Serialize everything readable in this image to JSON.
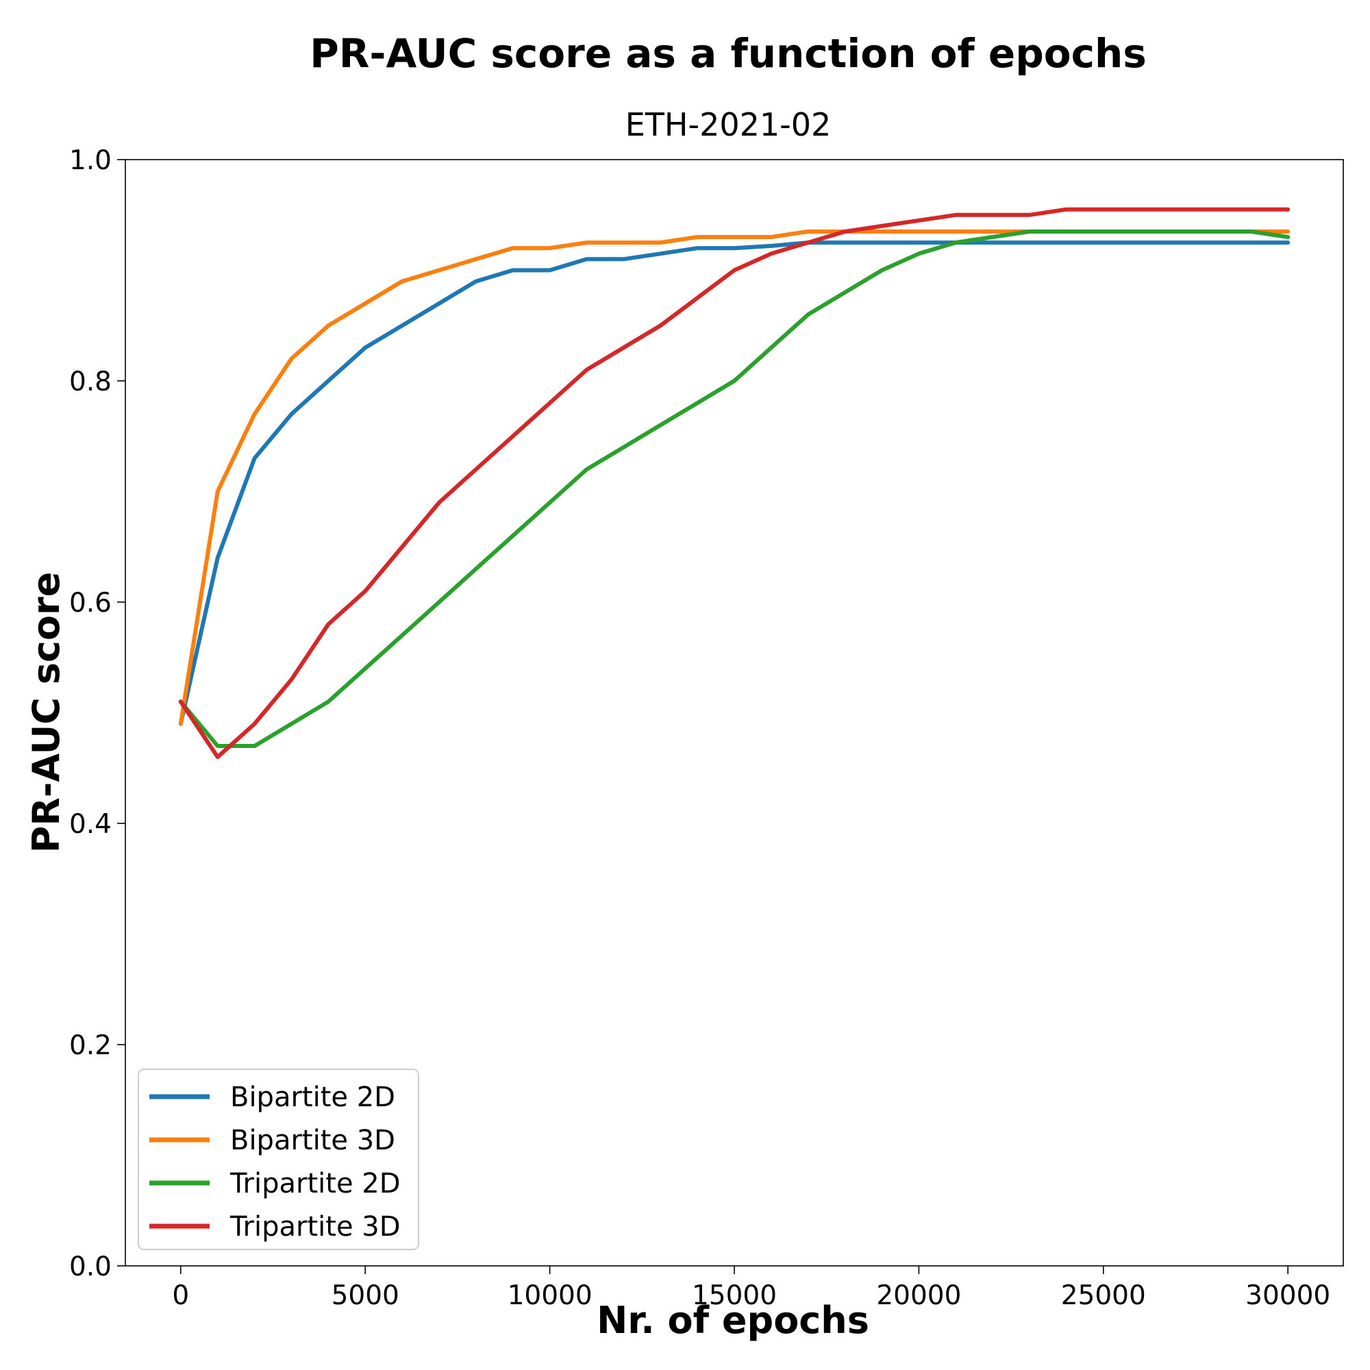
{
  "chart_data": {
    "type": "line",
    "title": "PR-AUC score as a function of epochs",
    "subtitle": "ETH-2021-02",
    "xlabel": "Nr. of epochs",
    "ylabel": "PR-AUC score",
    "xlim": [
      -1500,
      31500
    ],
    "ylim": [
      0.0,
      1.0
    ],
    "xticks": [
      0,
      5000,
      10000,
      15000,
      20000,
      25000,
      30000
    ],
    "xtick_labels": [
      "0",
      "5000",
      "10000",
      "15000",
      "20000",
      "25000",
      "30000"
    ],
    "yticks": [
      0.0,
      0.2,
      0.4,
      0.6,
      0.8,
      1.0
    ],
    "ytick_labels": [
      "0.0",
      "0.2",
      "0.4",
      "0.6",
      "0.8",
      "1.0"
    ],
    "grid": false,
    "legend_position": "lower-left",
    "x": [
      0,
      1000,
      2000,
      3000,
      4000,
      5000,
      6000,
      7000,
      8000,
      9000,
      10000,
      11000,
      12000,
      13000,
      14000,
      15000,
      16000,
      17000,
      18000,
      19000,
      20000,
      21000,
      22000,
      23000,
      24000,
      25000,
      26000,
      27000,
      28000,
      29000,
      30000
    ],
    "series": [
      {
        "name": "Bipartite 2D",
        "color": "#1f77b4",
        "values": [
          0.49,
          0.64,
          0.73,
          0.77,
          0.8,
          0.83,
          0.85,
          0.87,
          0.89,
          0.9,
          0.9,
          0.91,
          0.91,
          0.915,
          0.92,
          0.92,
          0.922,
          0.925,
          0.925,
          0.925,
          0.925,
          0.925,
          0.925,
          0.925,
          0.925,
          0.925,
          0.925,
          0.925,
          0.925,
          0.925,
          0.925
        ]
      },
      {
        "name": "Bipartite 3D",
        "color": "#ff7f0e",
        "values": [
          0.49,
          0.7,
          0.77,
          0.82,
          0.85,
          0.87,
          0.89,
          0.9,
          0.91,
          0.92,
          0.92,
          0.925,
          0.925,
          0.925,
          0.93,
          0.93,
          0.93,
          0.935,
          0.935,
          0.935,
          0.935,
          0.935,
          0.935,
          0.935,
          0.935,
          0.935,
          0.935,
          0.935,
          0.935,
          0.935,
          0.935
        ]
      },
      {
        "name": "Tripartite 2D",
        "color": "#2ca02c",
        "values": [
          0.51,
          0.47,
          0.47,
          0.49,
          0.51,
          0.54,
          0.57,
          0.6,
          0.63,
          0.66,
          0.69,
          0.72,
          0.74,
          0.76,
          0.78,
          0.8,
          0.83,
          0.86,
          0.88,
          0.9,
          0.915,
          0.925,
          0.93,
          0.935,
          0.935,
          0.935,
          0.935,
          0.935,
          0.935,
          0.935,
          0.93
        ]
      },
      {
        "name": "Tripartite 3D",
        "color": "#d62728",
        "values": [
          0.51,
          0.46,
          0.49,
          0.53,
          0.58,
          0.61,
          0.65,
          0.69,
          0.72,
          0.75,
          0.78,
          0.81,
          0.83,
          0.85,
          0.875,
          0.9,
          0.915,
          0.925,
          0.935,
          0.94,
          0.945,
          0.95,
          0.95,
          0.95,
          0.955,
          0.955,
          0.955,
          0.955,
          0.955,
          0.955,
          0.955
        ]
      }
    ]
  }
}
